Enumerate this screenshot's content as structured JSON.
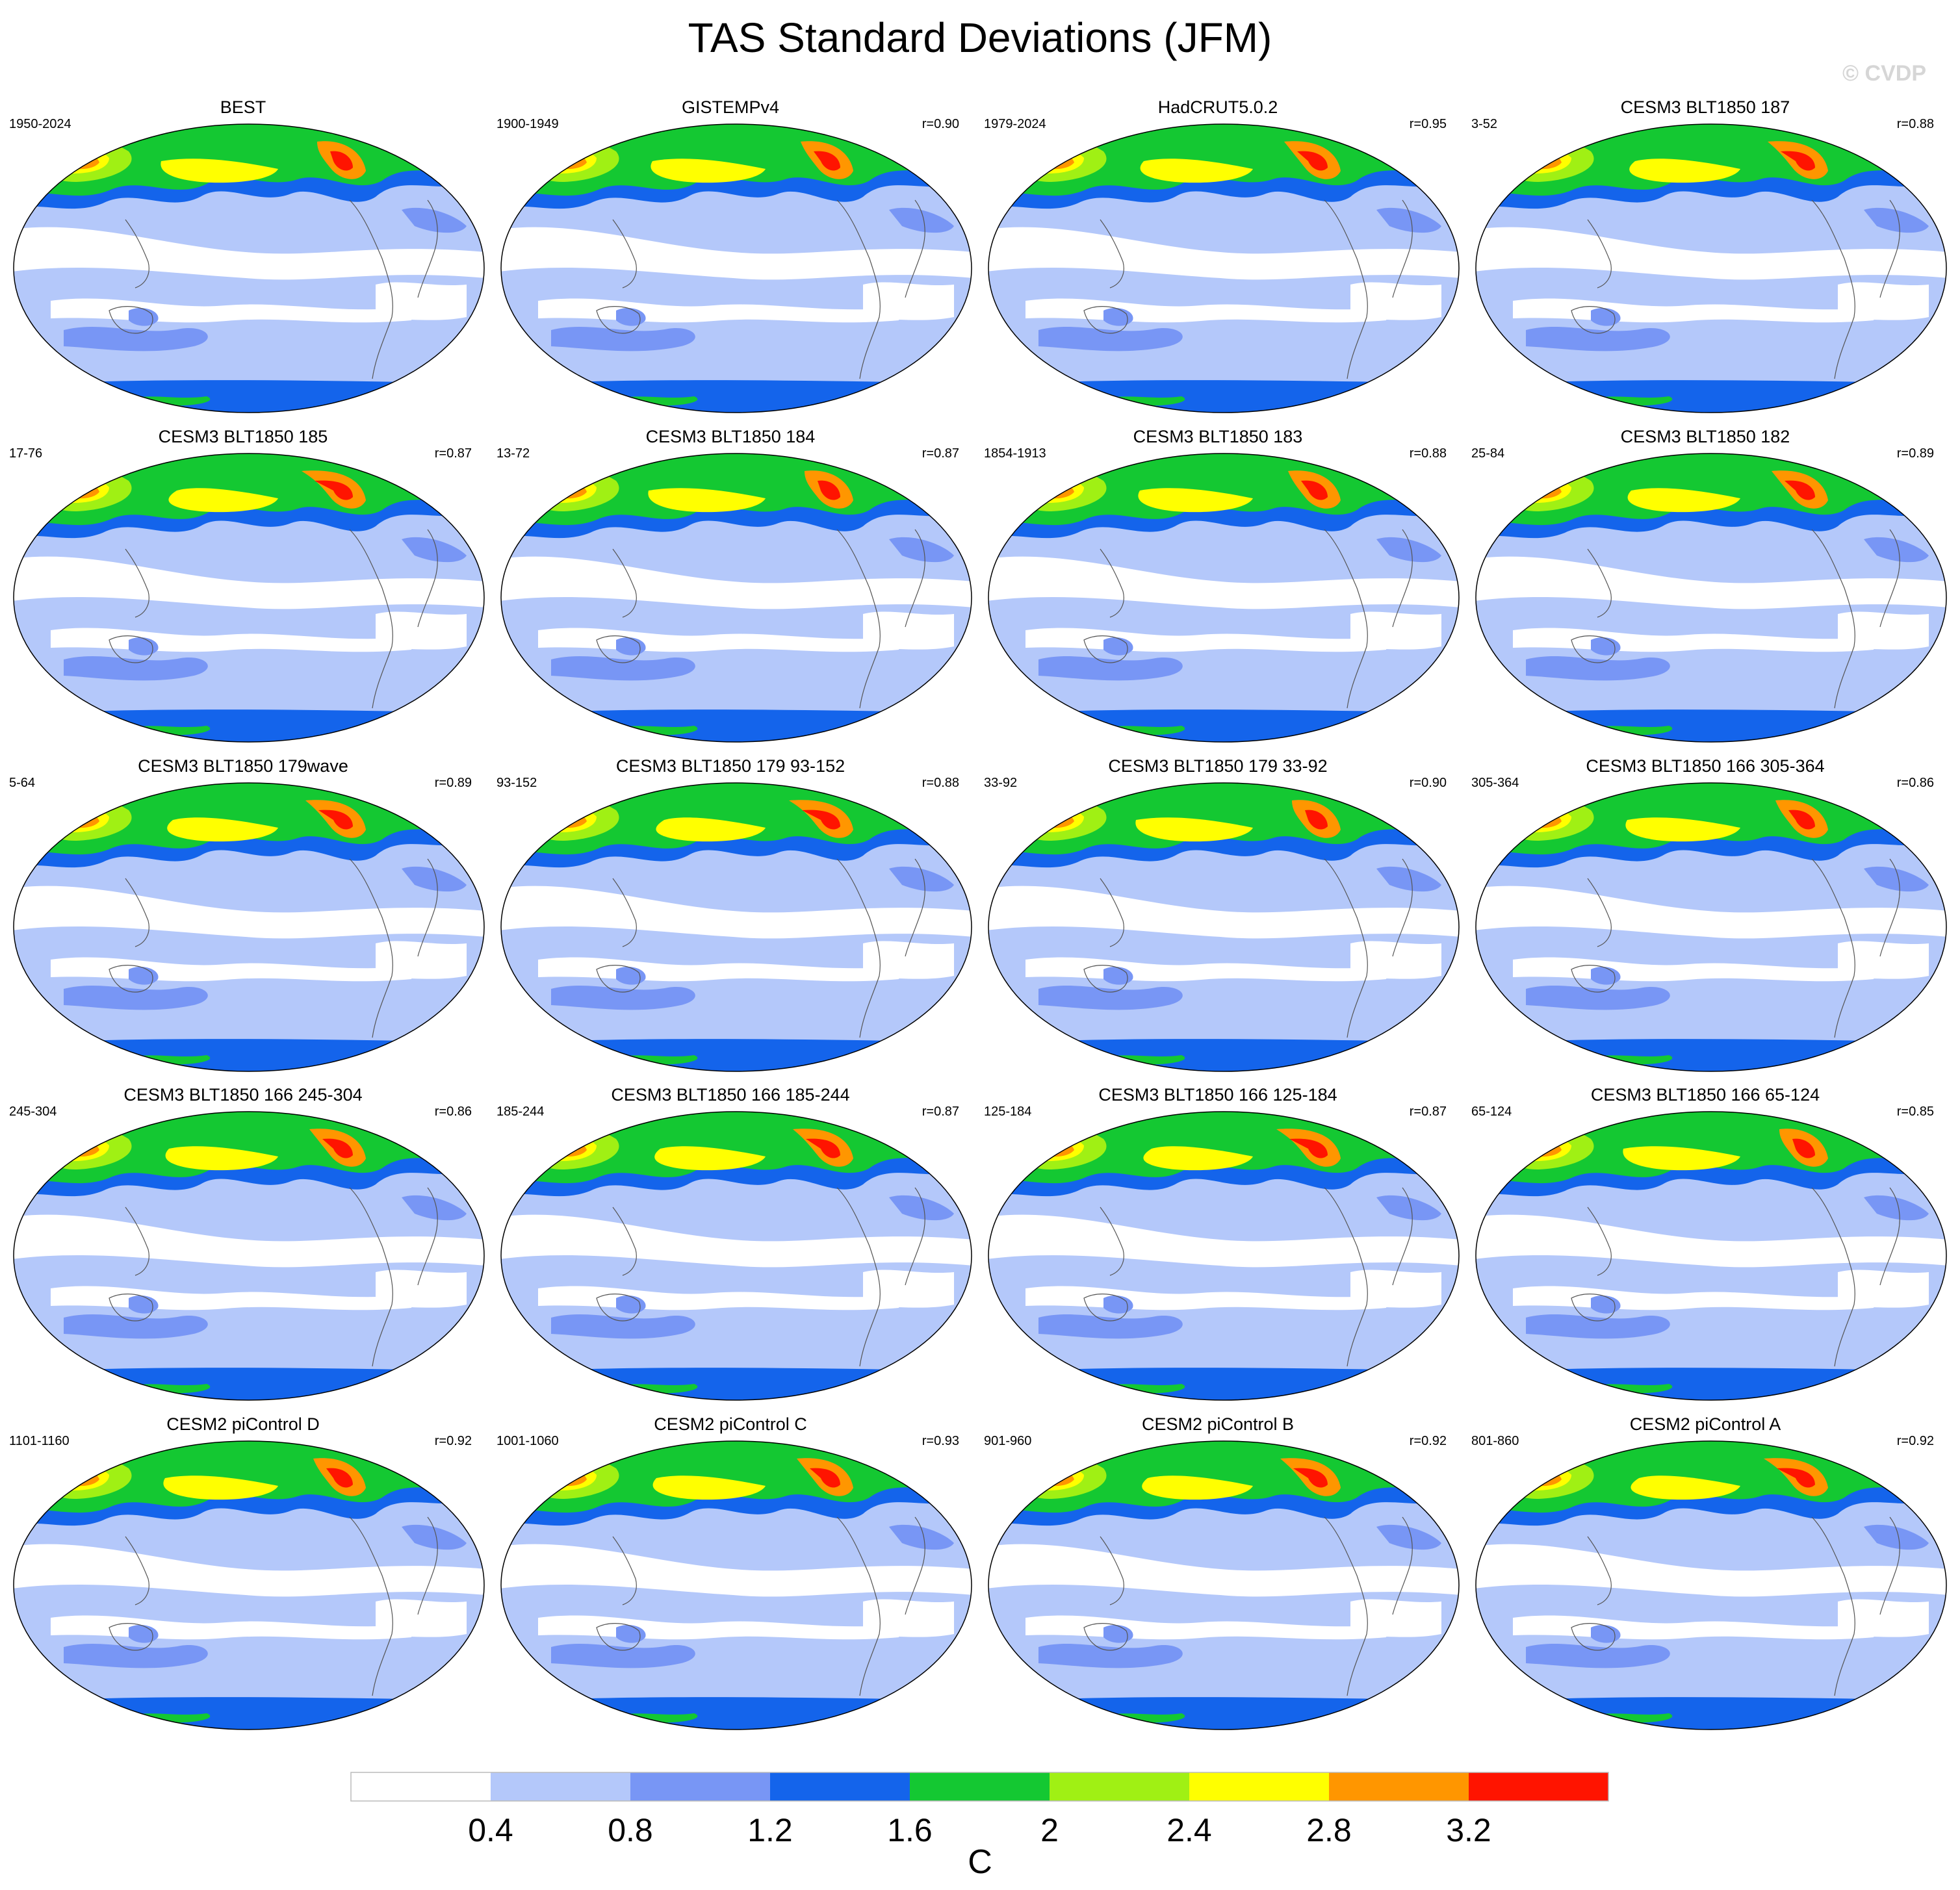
{
  "title": "TAS Standard Deviations (JFM)",
  "watermark": "© CVDP",
  "colors": {
    "levels": [
      "#ffffff",
      "#b4c8fa",
      "#7896f5",
      "#1464eb",
      "#14c832",
      "#a0f014",
      "#ffff00",
      "#ff9600",
      "#ff1400"
    ]
  },
  "colorbar": {
    "unit": "C",
    "ticks": [
      "0.4",
      "0.8",
      "1.2",
      "1.6",
      "2",
      "2.4",
      "2.8",
      "3.2"
    ]
  },
  "panels": [
    {
      "title": "BEST",
      "years": "1950-2024",
      "r": ""
    },
    {
      "title": "GISTEMPv4",
      "years": "1900-1949",
      "r": "r=0.90"
    },
    {
      "title": "HadCRUT5.0.2",
      "years": "1979-2024",
      "r": "r=0.95"
    },
    {
      "title": "CESM3 BLT1850 187",
      "years": "3-52",
      "r": "r=0.88"
    },
    {
      "title": "CESM3 BLT1850 185",
      "years": "17-76",
      "r": "r=0.87"
    },
    {
      "title": "CESM3 BLT1850 184",
      "years": "13-72",
      "r": "r=0.87"
    },
    {
      "title": "CESM3 BLT1850 183",
      "years": "1854-1913",
      "r": "r=0.88"
    },
    {
      "title": "CESM3 BLT1850 182",
      "years": "25-84",
      "r": "r=0.89"
    },
    {
      "title": "CESM3 BLT1850 179wave",
      "years": "5-64",
      "r": "r=0.89"
    },
    {
      "title": "CESM3 BLT1850 179 93-152",
      "years": "93-152",
      "r": "r=0.88"
    },
    {
      "title": "CESM3 BLT1850 179 33-92",
      "years": "33-92",
      "r": "r=0.90"
    },
    {
      "title": "CESM3 BLT1850 166 305-364",
      "years": "305-364",
      "r": "r=0.86"
    },
    {
      "title": "CESM3 BLT1850 166 245-304",
      "years": "245-304",
      "r": "r=0.86"
    },
    {
      "title": "CESM3 BLT1850 166 185-244",
      "years": "185-244",
      "r": "r=0.87"
    },
    {
      "title": "CESM3 BLT1850 166 125-184",
      "years": "125-184",
      "r": "r=0.87"
    },
    {
      "title": "CESM3 BLT1850 166 65-124",
      "years": "65-124",
      "r": "r=0.85"
    },
    {
      "title": "CESM2 piControl D",
      "years": "1101-1160",
      "r": "r=0.92"
    },
    {
      "title": "CESM2 piControl C",
      "years": "1001-1060",
      "r": "r=0.93"
    },
    {
      "title": "CESM2 piControl B",
      "years": "901-960",
      "r": "r=0.92"
    },
    {
      "title": "CESM2 piControl A",
      "years": "801-860",
      "r": "r=0.92"
    }
  ]
}
